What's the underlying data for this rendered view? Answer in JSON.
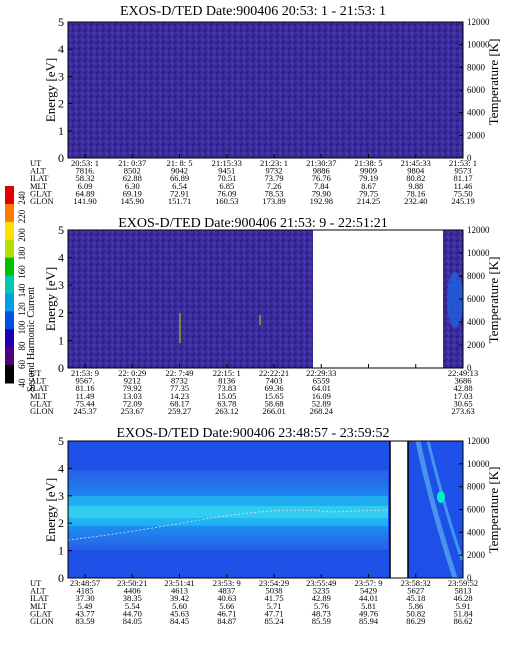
{
  "colorbar": {
    "label": "Second Harmonic Current",
    "ticks": [
      "240",
      "220",
      "200",
      "180",
      "160",
      "140",
      "120",
      "100",
      "80",
      "60",
      "40"
    ],
    "colors": [
      "#e10000",
      "#ff7a00",
      "#ffe000",
      "#b4e000",
      "#00c000",
      "#00c8b4",
      "#00a0e6",
      "#0050e6",
      "#1e00b4",
      "#50007a",
      "#000000"
    ]
  },
  "chart_data": [
    {
      "type": "heatmap",
      "title": "EXOS-D/TED   Date:900406  20:53: 1 - 21:53: 1",
      "ylabel": "Energy [eV]",
      "y2label": "Temperature [K]",
      "ylim": [
        0,
        5
      ],
      "y2lim": [
        0,
        12000
      ],
      "yticks": [
        "0",
        "1",
        "2",
        "3",
        "4",
        "5"
      ],
      "y2ticks": [
        "0",
        "2000",
        "4000",
        "6000",
        "8000",
        "10000",
        "12000"
      ],
      "dominant_color": "#3a2a9a",
      "data_extent": [
        0,
        1
      ],
      "rows": {
        "UT": [
          "20:53: 1",
          "21: 0:37",
          "21: 8: 5",
          "21:15:33",
          "21:23: 1",
          "21:30:37",
          "21:38: 5",
          "21:45:33",
          "21:53: 1"
        ],
        "ALT": [
          "7816.",
          "8502",
          "9042",
          "9451",
          "9732",
          "9886",
          "9909",
          "9804",
          "9573"
        ],
        "ILAT": [
          "58.32",
          "62.88",
          "66.89",
          "70.51",
          "73.79",
          "76.76",
          "79.19",
          "80.82",
          "81.17"
        ],
        "MLT": [
          "6.09",
          "6.30",
          "6.54",
          "6.85",
          "7.26",
          "7.84",
          "8.67",
          "9.88",
          "11.46"
        ],
        "GLAT": [
          "64.89",
          "69.19",
          "72.91",
          "76.09",
          "78.53",
          "79.90",
          "79.75",
          "78.16",
          "75.50"
        ],
        "GLON": [
          "141.90",
          "145.90",
          "151.71",
          "160.53",
          "173.89",
          "192.98",
          "214.25",
          "232.40",
          "245.19"
        ]
      }
    },
    {
      "type": "heatmap",
      "title": "EXOS-D/TED   Date:900406  21:53: 9 - 22:51:21",
      "ylabel": "Energy [eV]",
      "y2label": "Temperature [K]",
      "ylim": [
        0,
        5
      ],
      "y2lim": [
        0,
        12000
      ],
      "yticks": [
        "0",
        "1",
        "2",
        "3",
        "4",
        "5"
      ],
      "y2ticks": [
        "0",
        "2000",
        "4000",
        "6000",
        "8000",
        "10000",
        "12000"
      ],
      "dominant_color": "#3a2a9a",
      "data_extent": [
        0,
        0.617
      ],
      "rows": {
        "UT": [
          "21:53: 9",
          "22: 0:29",
          "22: 7:49",
          "22:15: 1",
          "22:22:21",
          "22:29:33",
          "",
          "",
          "22:49:13"
        ],
        "ALT": [
          "9567.",
          "9212",
          "8732",
          "8136",
          "7403",
          "6559",
          "",
          "",
          "3686"
        ],
        "ILAT": [
          "81.16",
          "79.92",
          "77.35",
          "73.83",
          "69.36",
          "64.01",
          "",
          "",
          "42.88"
        ],
        "MLT": [
          "11.49",
          "13.03",
          "14.23",
          "15.05",
          "15.65",
          "16.09",
          "",
          "",
          "17.03"
        ],
        "GLAT": [
          "75.44",
          "72.09",
          "68.17",
          "63.78",
          "58.68",
          "52.89",
          "",
          "",
          "30.65"
        ],
        "GLON": [
          "245.37",
          "253.67",
          "259.27",
          "263.12",
          "266.01",
          "268.24",
          "",
          "",
          "273.63"
        ]
      }
    },
    {
      "type": "heatmap",
      "title": "EXOS-D/TED   Date:900406  23:48:57 - 23:59:52",
      "ylabel": "Energy [eV]",
      "y2label": "Temperature [K]",
      "ylim": [
        0,
        5
      ],
      "y2lim": [
        0,
        12000
      ],
      "yticks": [
        "0",
        "1",
        "2",
        "3",
        "4",
        "5"
      ],
      "y2ticks": [
        "0",
        "2000",
        "4000",
        "6000",
        "8000",
        "10000",
        "12000"
      ],
      "dominant_color": "#1e50e6",
      "data_extent": [
        0,
        1
      ],
      "rows": {
        "UT": [
          "23:48:57",
          "23:50:21",
          "23:51:41",
          "23:53: 9",
          "23:54:29",
          "23:55:49",
          "23:57: 9",
          "23:58:32",
          "23:59:52"
        ],
        "ALT": [
          "4185",
          "4406",
          "4613",
          "4837",
          "5038",
          "5235",
          "5429",
          "5627",
          "5813"
        ],
        "ILAT": [
          "37.30",
          "38.35",
          "39.42",
          "40.63",
          "41.75",
          "42.89",
          "44.01",
          "45.18",
          "46.28"
        ],
        "MLT": [
          "5.49",
          "5.54",
          "5.60",
          "5.66",
          "5.71",
          "5.76",
          "5.81",
          "5.86",
          "5.91"
        ],
        "GLAT": [
          "43.77",
          "44.70",
          "45.63",
          "46.71",
          "47.71",
          "48.73",
          "49.76",
          "50.82",
          "51.84"
        ],
        "GLON": [
          "83.59",
          "84.05",
          "84.45",
          "84.87",
          "85.24",
          "85.59",
          "85.94",
          "86.29",
          "86.62"
        ]
      }
    }
  ]
}
